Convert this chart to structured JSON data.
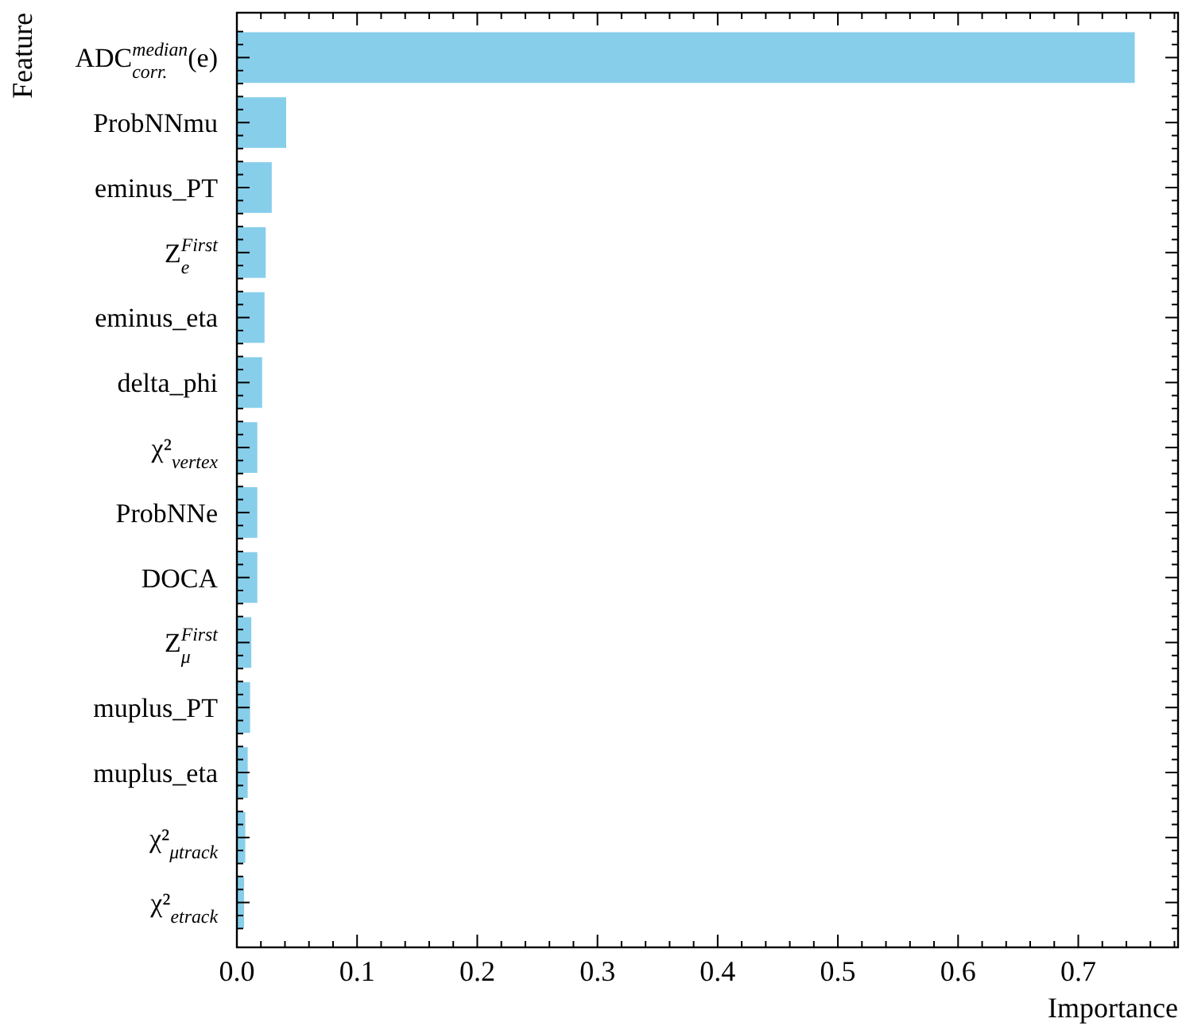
{
  "chart_data": {
    "type": "bar",
    "orientation": "horizontal",
    "xlabel": "Importance",
    "ylabel": "Feature",
    "categories": [
      "ADC$^{median}$$_{corr.}$(e)",
      "ProbNNmu",
      "eminus_PT",
      "Z$^{First}$$_{e}$",
      "eminus_eta",
      "delta_phi",
      "χ²$_{vertex}$",
      "ProbNNe",
      "DOCA",
      "Z$^{First}$$_{μ}$",
      "muplus_PT",
      "muplus_eta",
      "χ²$_{μtrack}$",
      "χ²$_{etrack}$"
    ],
    "values": [
      0.747,
      0.041,
      0.029,
      0.024,
      0.023,
      0.021,
      0.017,
      0.017,
      0.017,
      0.012,
      0.011,
      0.009,
      0.007,
      0.006
    ],
    "color": "#87ceeb",
    "xlim": [
      0,
      0.783
    ],
    "xticks": [
      {
        "value": 0,
        "label": "0.0"
      },
      {
        "value": 0.02,
        "label": null
      },
      {
        "value": 0.04,
        "label": null
      },
      {
        "value": 0.06,
        "label": null
      },
      {
        "value": 0.08,
        "label": null
      },
      {
        "value": 0.1,
        "label": "0.1"
      },
      {
        "value": 0.12,
        "label": null
      },
      {
        "value": 0.14,
        "label": null
      },
      {
        "value": 0.16,
        "label": null
      },
      {
        "value": 0.18,
        "label": null
      },
      {
        "value": 0.2,
        "label": "0.2"
      },
      {
        "value": 0.22,
        "label": null
      },
      {
        "value": 0.24,
        "label": null
      },
      {
        "value": 0.26,
        "label": null
      },
      {
        "value": 0.28,
        "label": null
      },
      {
        "value": 0.3,
        "label": "0.3"
      },
      {
        "value": 0.32,
        "label": null
      },
      {
        "value": 0.34,
        "label": null
      },
      {
        "value": 0.36,
        "label": null
      },
      {
        "value": 0.38,
        "label": null
      },
      {
        "value": 0.4,
        "label": "0.4"
      },
      {
        "value": 0.42,
        "label": null
      },
      {
        "value": 0.44,
        "label": null
      },
      {
        "value": 0.46,
        "label": null
      },
      {
        "value": 0.48,
        "label": null
      },
      {
        "value": 0.5,
        "label": "0.5"
      },
      {
        "value": 0.52,
        "label": null
      },
      {
        "value": 0.54,
        "label": null
      },
      {
        "value": 0.56,
        "label": null
      },
      {
        "value": 0.58,
        "label": null
      },
      {
        "value": 0.6,
        "label": "0.6"
      },
      {
        "value": 0.62,
        "label": null
      },
      {
        "value": 0.64,
        "label": null
      },
      {
        "value": 0.66,
        "label": null
      },
      {
        "value": 0.68,
        "label": null
      },
      {
        "value": 0.7,
        "label": "0.7"
      },
      {
        "value": 0.72,
        "label": null
      },
      {
        "value": 0.74,
        "label": null
      },
      {
        "value": 0.76,
        "label": null
      },
      {
        "value": 0.78,
        "label": null
      }
    ],
    "grid": false
  }
}
